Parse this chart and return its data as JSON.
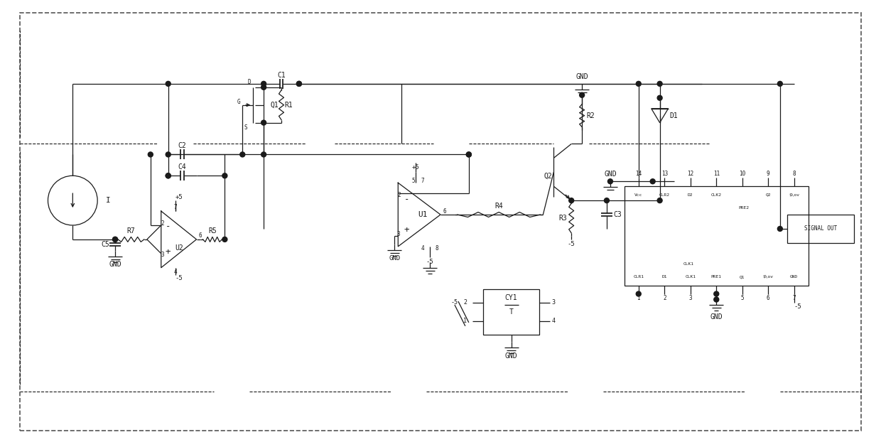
{
  "bg_color": "#ffffff",
  "line_color": "#1a1a1a",
  "figsize": [
    12.4,
    6.22
  ],
  "dpi": 100,
  "xlim": [
    0,
    124
  ],
  "ylim": [
    0,
    62.2
  ]
}
